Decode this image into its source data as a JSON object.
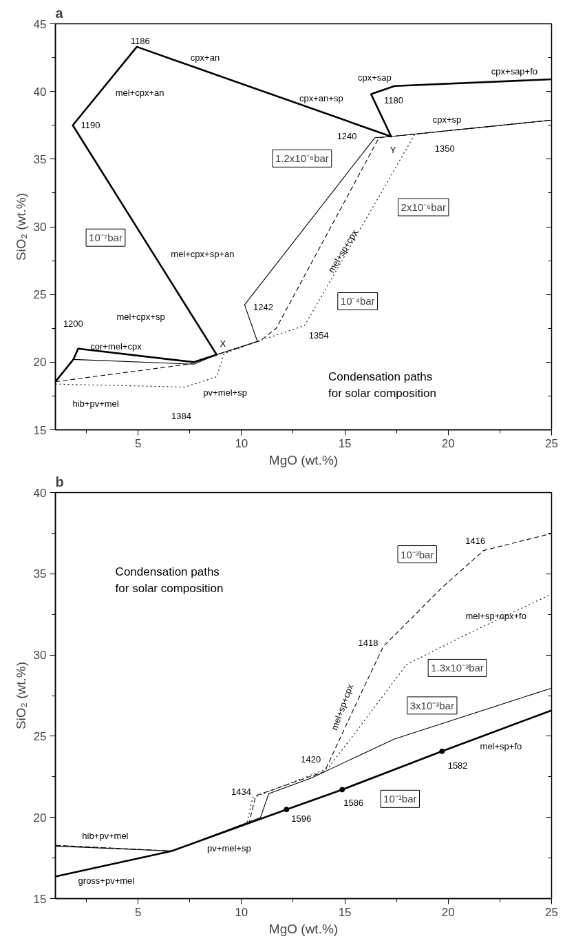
{
  "chart_data": [
    {
      "type": "line",
      "title": "a",
      "xlabel": "MgO (wt.%)",
      "ylabel": "SiO₂ (wt.%)",
      "xlim": [
        1,
        25
      ],
      "ylim": [
        15,
        45
      ],
      "xticks": [
        {
          "value": 2.5,
          "label": null
        },
        5,
        {
          "value": 7.5,
          "label": null
        },
        10,
        {
          "value": 12.5,
          "label": null
        },
        15,
        {
          "value": 17.5,
          "label": null
        },
        20,
        {
          "value": 22.5,
          "label": null
        },
        25
      ],
      "yticks": [
        15,
        {
          "value": 17.5,
          "label": null
        },
        20,
        {
          "value": 22.5,
          "label": null
        },
        25,
        {
          "value": 27.5,
          "label": null
        },
        30,
        {
          "value": 32.5,
          "label": null
        },
        35,
        {
          "value": 37.5,
          "label": null
        },
        40,
        {
          "value": 42.5,
          "label": null
        },
        45
      ],
      "series": [
        {
          "name": "10⁻⁷bar",
          "color": "#000000",
          "line_style": "solid",
          "x": [
            1,
            1.87,
            2.1,
            7.7,
            8.8,
            1.84,
            4.94,
            17.24,
            16.27,
            17.41,
            25
          ],
          "values": [
            18.56,
            20.2,
            21.0,
            20.0,
            20.55,
            37.5,
            43.3,
            36.67,
            39.8,
            40.4,
            40.9
          ]
        },
        {
          "name": "1.2x10⁻⁶bar",
          "color": "#000000",
          "line_style": "solid",
          "x": [
            1.87,
            7.7,
            8.8,
            10.77,
            10.15,
            16.45,
            17.24,
            25
          ],
          "values": [
            20.2,
            19.85,
            20.55,
            21.53,
            24.24,
            36.58,
            36.67,
            37.88
          ]
        },
        {
          "name": "2x10⁻⁶bar",
          "color": "#000000",
          "line_style": "dashed",
          "x": [
            1,
            7.5,
            8.8,
            10.93,
            11.68,
            16.65,
            17.24,
            25
          ],
          "values": [
            18.56,
            19.86,
            20.55,
            21.6,
            22.5,
            36.58,
            36.67,
            37.88
          ]
        },
        {
          "name": "10⁻⁴bar",
          "color": "#000000",
          "line_style": "dotted",
          "x": [
            1,
            7.26,
            8.81,
            9.15,
            10.77,
            13.05,
            18.39,
            25
          ],
          "values": [
            18.38,
            18.16,
            18.92,
            20.63,
            21.53,
            22.7,
            36.85,
            37.88
          ]
        }
      ],
      "annotations": [
        "1186",
        "cpx+an",
        "mel+cpx+an",
        "1190",
        "cpx+an+sp",
        "cpx+sap",
        "1180",
        "cpx+sap+fo",
        "cpx+sp",
        "1240",
        "Y",
        "1350",
        "mel+sp+cpx",
        "mel+cpx+sp+an",
        "mel+cpx+sp",
        "1242",
        "1354",
        "X",
        "1200",
        "cor+mel+cpx",
        "hib+pv+mel",
        "pv+mel+sp",
        "1384",
        "Condensation paths\nfor solar composition"
      ]
    },
    {
      "type": "line",
      "title": "b",
      "xlabel": "MgO (wt.%)",
      "ylabel": "SiO₂ (wt.%)",
      "xlim": [
        1,
        25
      ],
      "ylim": [
        15,
        40
      ],
      "xticks": [
        {
          "value": 2.5,
          "label": null
        },
        5,
        {
          "value": 7.5,
          "label": null
        },
        10,
        {
          "value": 12.5,
          "label": null
        },
        15,
        {
          "value": 17.5,
          "label": null
        },
        20,
        {
          "value": 22.5,
          "label": null
        },
        25
      ],
      "yticks": [
        15,
        {
          "value": 17.5,
          "label": null
        },
        20,
        {
          "value": 22.5,
          "label": null
        },
        25,
        {
          "value": 27.5,
          "label": null
        },
        30,
        {
          "value": 32.5,
          "label": null
        },
        35,
        {
          "value": 37.5,
          "label": null
        },
        40
      ],
      "series": [
        {
          "name": "10⁻¹bar",
          "color": "#000000",
          "line_style": "solid",
          "x": [
            1,
            6.63,
            12.18,
            14.87,
            19.7,
            25
          ],
          "values": [
            16.36,
            17.93,
            20.49,
            21.71,
            24.07,
            26.59
          ]
        },
        {
          "name": "3x10⁻³bar",
          "color": "#000000",
          "line_style": "solid",
          "x": [
            1,
            6.63,
            10.92,
            11.32,
            13.35,
            17.4,
            25
          ],
          "values": [
            18.23,
            17.93,
            19.99,
            21.46,
            22.41,
            24.83,
            27.96
          ]
        },
        {
          "name": "10⁻³bar",
          "color": "#000000",
          "line_style": "dashed",
          "x": [
            1,
            6.63,
            10.37,
            10.69,
            14.02,
            15.68,
            16.86,
            19.7,
            21.71,
            25
          ],
          "values": [
            18.28,
            17.93,
            19.68,
            21.34,
            22.82,
            27.36,
            30.52,
            34.15,
            36.43,
            37.48
          ]
        },
        {
          "name": "1.3x10⁻³bar",
          "color": "#000000",
          "line_style": "dotted",
          "x": [
            1,
            6.63,
            10.26,
            10.54,
            14.18,
            15.6,
            17.98,
            20.99,
            25
          ],
          "values": [
            18.28,
            17.93,
            19.6,
            21.2,
            23.02,
            25.37,
            29.41,
            31.33,
            33.75
          ]
        },
        {
          "type": "scatter",
          "color": "#000000",
          "marker": "circle",
          "x": [
            12.18,
            14.87,
            19.7
          ],
          "values": [
            20.49,
            21.71,
            24.07
          ]
        }
      ],
      "annotations": [
        "1416",
        "1418",
        "mel+sp+cpx+fo",
        "mel+sp+cpx",
        "1420",
        "1434",
        "1596",
        "1586",
        "1582",
        "mel+sp+fo",
        "hib+pv+mel",
        "pv+mel+sp",
        "gross+pv+mel",
        "Condensation paths\nfor solar composition"
      ]
    }
  ]
}
